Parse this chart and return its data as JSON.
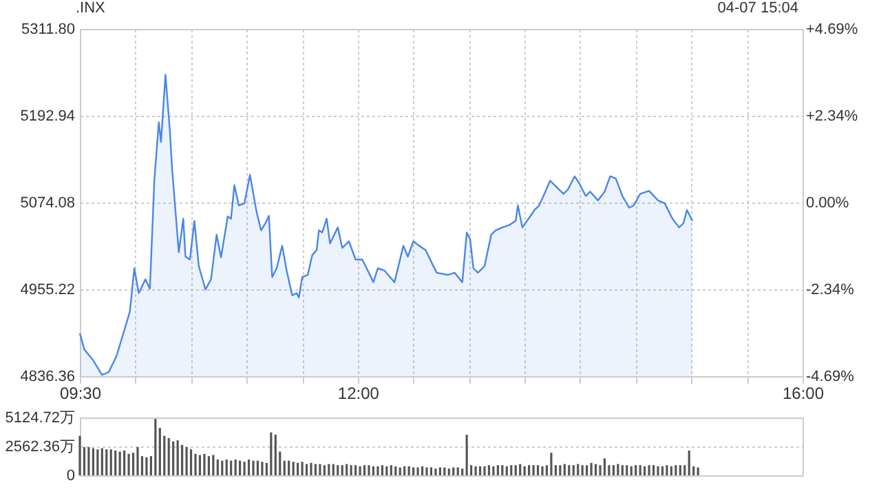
{
  "chart_data": [
    {
      "type": "area",
      "title": ".INX",
      "subtitle": "04-07 15:04",
      "x": [
        9.5,
        9.54,
        9.62,
        9.7,
        9.76,
        9.83,
        9.89,
        9.95,
        9.99,
        10.03,
        10.09,
        10.13,
        10.17,
        10.21,
        10.23,
        10.27,
        10.31,
        10.33,
        10.39,
        10.43,
        10.45,
        10.49,
        10.53,
        10.57,
        10.63,
        10.68,
        10.73,
        10.77,
        10.83,
        10.86,
        10.89,
        10.93,
        10.98,
        11.03,
        11.09,
        11.13,
        11.17,
        11.2,
        11.23,
        11.27,
        11.32,
        11.36,
        11.41,
        11.45,
        11.47,
        11.5,
        11.55,
        11.59,
        11.63,
        11.65,
        11.68,
        11.72,
        11.75,
        11.82,
        11.86,
        11.92,
        11.98,
        12.04,
        12.08,
        12.14,
        12.18,
        12.24,
        12.33,
        12.41,
        12.45,
        12.5,
        12.55,
        12.61,
        12.67,
        12.71,
        12.81,
        12.87,
        12.94,
        12.98,
        13.01,
        13.04,
        13.08,
        13.14,
        13.2,
        13.24,
        13.3,
        13.36,
        13.42,
        13.44,
        13.48,
        13.55,
        13.59,
        13.63,
        13.67,
        13.73,
        13.79,
        13.85,
        13.89,
        13.95,
        13.99,
        14.05,
        14.09,
        14.16,
        14.22,
        14.27,
        14.32,
        14.38,
        14.44,
        14.48,
        14.54,
        14.62,
        14.7,
        14.76,
        14.83,
        14.89,
        14.93,
        14.96,
        15.01
      ],
      "series": [
        {
          "color": "#4a86e8",
          "values": [
            4895,
            4873,
            4858,
            4838,
            4842,
            4864,
            4894,
            4925,
            4984,
            4950,
            4969,
            4956,
            5104,
            5184,
            5157,
            5249,
            5172,
            5120,
            5006,
            5052,
            5000,
            4996,
            5049,
            4987,
            4955,
            4969,
            5030,
            4999,
            5055,
            5052,
            5098,
            5070,
            5073,
            5112,
            5061,
            5036,
            5046,
            5056,
            4972,
            4984,
            5015,
            4981,
            4947,
            4950,
            4944,
            4972,
            4975,
            5002,
            5009,
            5036,
            5033,
            5052,
            5018,
            5040,
            5012,
            5021,
            4996,
            4996,
            4984,
            4965,
            4984,
            4981,
            4965,
            5015,
            5000,
            5021,
            5015,
            5009,
            4990,
            4978,
            4975,
            4978,
            4965,
            5033,
            5024,
            4984,
            4978,
            4987,
            5030,
            5036,
            5040,
            5043,
            5049,
            5070,
            5040,
            5055,
            5064,
            5070,
            5083,
            5104,
            5095,
            5086,
            5092,
            5110,
            5101,
            5083,
            5089,
            5077,
            5089,
            5110,
            5107,
            5083,
            5067,
            5070,
            5086,
            5090,
            5077,
            5073,
            5052,
            5040,
            5046,
            5064,
            5049
          ]
        }
      ],
      "xlim": [
        9.5,
        16
      ],
      "xticks": [
        {
          "value": 9.5,
          "label": "09:30"
        },
        {
          "value": 10,
          "label": null
        },
        {
          "value": 10.5,
          "label": null
        },
        {
          "value": 11,
          "label": null
        },
        {
          "value": 11.5,
          "label": null
        },
        {
          "value": 12,
          "label": "12:00"
        },
        {
          "value": 12.5,
          "label": null
        },
        {
          "value": 13,
          "label": null
        },
        {
          "value": 13.5,
          "label": null
        },
        {
          "value": 14,
          "label": null
        },
        {
          "value": 14.5,
          "label": null
        },
        {
          "value": 15,
          "label": null
        },
        {
          "value": 15.5,
          "label": null
        },
        {
          "value": 16,
          "label": "16:00"
        }
      ],
      "ylim": [
        4836.36,
        5311.8
      ],
      "yticks": [
        4836.36,
        4955.22,
        5074.08,
        5192.94,
        {
          "value": 5311.8,
          "label": "5311.80"
        }
      ],
      "y2lim": [
        -4.69,
        4.69
      ],
      "y2ticks": [
        {
          "value": -4.69,
          "label": "-4.69%"
        },
        {
          "value": -2.34,
          "label": "-2.34%"
        },
        {
          "value": 0,
          "label": "0.00%"
        },
        {
          "value": 2.34,
          "label": "+2.34%"
        },
        {
          "value": 4.69,
          "label": "+4.69%"
        }
      ],
      "grid": true
    },
    {
      "type": "bar",
      "x": [
        9.5,
        9.54,
        9.58,
        9.62,
        9.66,
        9.7,
        9.74,
        9.78,
        9.82,
        9.86,
        9.9,
        9.94,
        9.98,
        10.02,
        10.06,
        10.1,
        10.14,
        10.18,
        10.22,
        10.26,
        10.3,
        10.34,
        10.38,
        10.42,
        10.46,
        10.5,
        10.54,
        10.58,
        10.62,
        10.66,
        10.7,
        10.74,
        10.78,
        10.82,
        10.86,
        10.9,
        10.94,
        10.98,
        11.02,
        11.06,
        11.1,
        11.14,
        11.18,
        11.22,
        11.26,
        11.3,
        11.34,
        11.38,
        11.42,
        11.46,
        11.5,
        11.54,
        11.58,
        11.62,
        11.66,
        11.7,
        11.74,
        11.78,
        11.82,
        11.86,
        11.9,
        11.94,
        11.98,
        12.02,
        12.06,
        12.1,
        12.14,
        12.18,
        12.22,
        12.26,
        12.3,
        12.34,
        12.38,
        12.42,
        12.46,
        12.5,
        12.54,
        12.58,
        12.62,
        12.66,
        12.7,
        12.74,
        12.78,
        12.82,
        12.86,
        12.9,
        12.94,
        12.98,
        13.02,
        13.06,
        13.1,
        13.14,
        13.18,
        13.22,
        13.26,
        13.3,
        13.34,
        13.38,
        13.42,
        13.46,
        13.5,
        13.54,
        13.58,
        13.62,
        13.66,
        13.7,
        13.74,
        13.78,
        13.82,
        13.86,
        13.9,
        13.94,
        13.98,
        14.02,
        14.06,
        14.1,
        14.14,
        14.18,
        14.22,
        14.26,
        14.3,
        14.34,
        14.38,
        14.42,
        14.46,
        14.5,
        14.54,
        14.58,
        14.62,
        14.66,
        14.7,
        14.74,
        14.78,
        14.82,
        14.86,
        14.9,
        14.94,
        14.98,
        15.02,
        15.06
      ],
      "series": [
        {
          "color": "#555555",
          "values": [
            3500,
            2500,
            2500,
            2400,
            2300,
            2400,
            2300,
            2300,
            2200,
            2100,
            2200,
            1900,
            2000,
            2500,
            1700,
            1600,
            1700,
            5000,
            4200,
            3500,
            3300,
            3000,
            3100,
            2700,
            2500,
            2300,
            1900,
            1800,
            1900,
            1700,
            1800,
            1400,
            1300,
            1400,
            1300,
            1400,
            1300,
            1200,
            1400,
            1300,
            1300,
            1200,
            1100,
            3800,
            3600,
            2100,
            1300,
            1300,
            1200,
            1100,
            1200,
            1000,
            1100,
            1000,
            1000,
            900,
            1000,
            1000,
            900,
            900,
            1000,
            900,
            900,
            800,
            900,
            900,
            800,
            800,
            900,
            800,
            900,
            800,
            700,
            800,
            800,
            700,
            700,
            800,
            700,
            700,
            600,
            700,
            700,
            600,
            700,
            700,
            600,
            3600,
            900,
            800,
            800,
            800,
            900,
            800,
            900,
            900,
            800,
            900,
            900,
            1000,
            800,
            900,
            900,
            900,
            800,
            900,
            2000,
            900,
            900,
            1000,
            900,
            900,
            1000,
            900,
            900,
            1100,
            1000,
            900,
            1500,
            900,
            900,
            1000,
            900,
            900,
            800,
            900,
            900,
            800,
            900,
            900,
            800,
            800,
            900,
            800,
            900,
            900,
            900,
            2200,
            800,
            700
          ]
        }
      ],
      "xlim": [
        9.5,
        16
      ],
      "ylim": [
        0,
        5124.72
      ],
      "yticks": [
        0,
        {
          "value": 2562.36,
          "label": "2562.36万"
        },
        {
          "value": 5124.72,
          "label": "5124.72万"
        }
      ],
      "grid": "y",
      "tick_labels": "y"
    }
  ]
}
